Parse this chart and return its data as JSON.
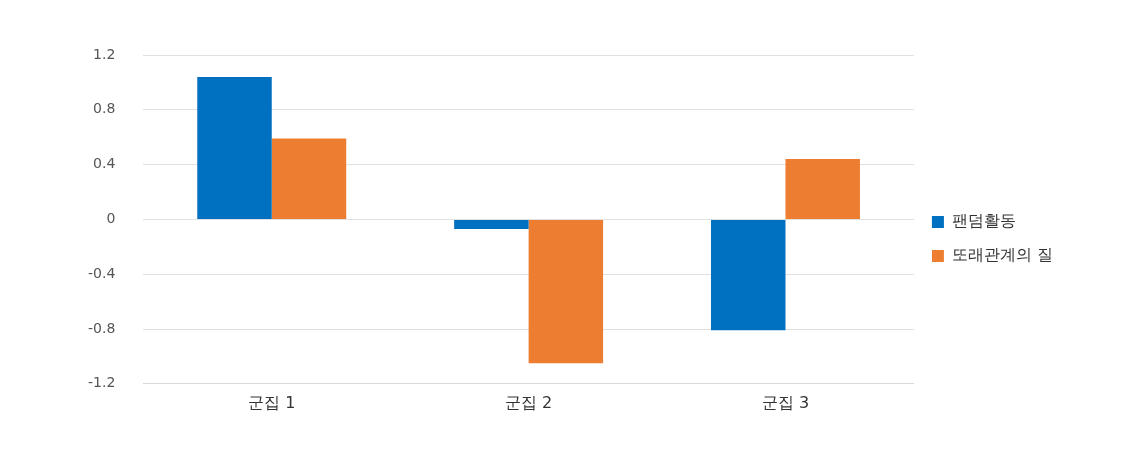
{
  "chart_data": {
    "type": "bar",
    "categories": [
      "군집 1",
      "군집 2",
      "군집 3"
    ],
    "series": [
      {
        "name": "팬덤활동",
        "color": "#0070c0",
        "values": [
          1.04,
          -0.07,
          -0.81
        ]
      },
      {
        "name": "또래관계의 질",
        "color": "#ed7d31",
        "values": [
          0.59,
          -1.05,
          0.44
        ]
      }
    ],
    "ylim": [
      -1.2,
      1.2
    ],
    "yticks": [
      -1.2,
      -0.8,
      -0.4,
      0,
      0.4,
      0.8,
      1.2
    ],
    "grid": "y",
    "legend": "right"
  }
}
